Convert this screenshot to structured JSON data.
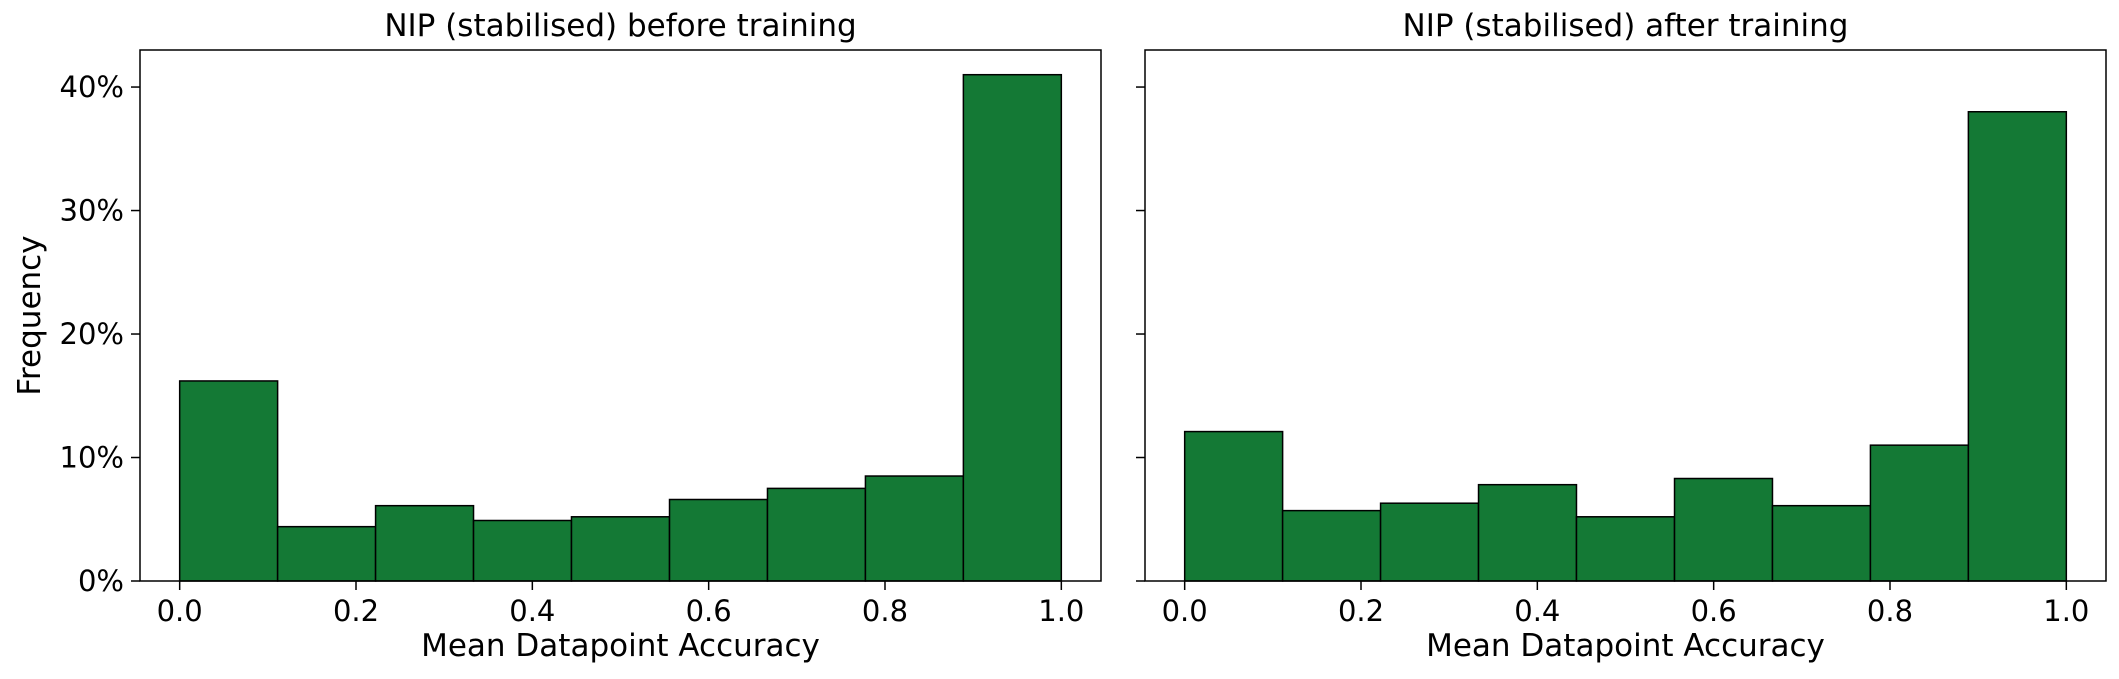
{
  "chart_data": [
    {
      "type": "bar",
      "title": "NIP (stabilised) before training",
      "xlabel": "Mean Datapoint Accuracy",
      "ylabel": "Frequency",
      "bin_edges": [
        0.0,
        0.1111,
        0.2222,
        0.3333,
        0.4444,
        0.5556,
        0.6667,
        0.7778,
        0.8889,
        1.0
      ],
      "values": [
        16.2,
        4.4,
        6.1,
        4.9,
        5.2,
        6.6,
        7.5,
        8.5,
        41.0
      ],
      "xlim": [
        -0.045,
        1.045
      ],
      "ylim": [
        0,
        43
      ],
      "x_ticks": [
        "0.0",
        "0.2",
        "0.4",
        "0.6",
        "0.8",
        "1.0"
      ],
      "y_ticks": [
        "0%",
        "10%",
        "20%",
        "30%",
        "40%"
      ],
      "show_y_tick_labels": true
    },
    {
      "type": "bar",
      "title": "NIP (stabilised) after training",
      "xlabel": "Mean Datapoint Accuracy",
      "ylabel": "",
      "bin_edges": [
        0.0,
        0.1111,
        0.2222,
        0.3333,
        0.4444,
        0.5556,
        0.6667,
        0.7778,
        0.8889,
        1.0
      ],
      "values": [
        12.1,
        5.7,
        6.3,
        7.8,
        5.2,
        8.3,
        6.1,
        11.0,
        38.0
      ],
      "xlim": [
        -0.045,
        1.045
      ],
      "ylim": [
        0,
        43
      ],
      "x_ticks": [
        "0.0",
        "0.2",
        "0.4",
        "0.6",
        "0.8",
        "1.0"
      ],
      "y_ticks": [
        "0%",
        "10%",
        "20%",
        "30%",
        "40%"
      ],
      "show_y_tick_labels": false
    }
  ]
}
